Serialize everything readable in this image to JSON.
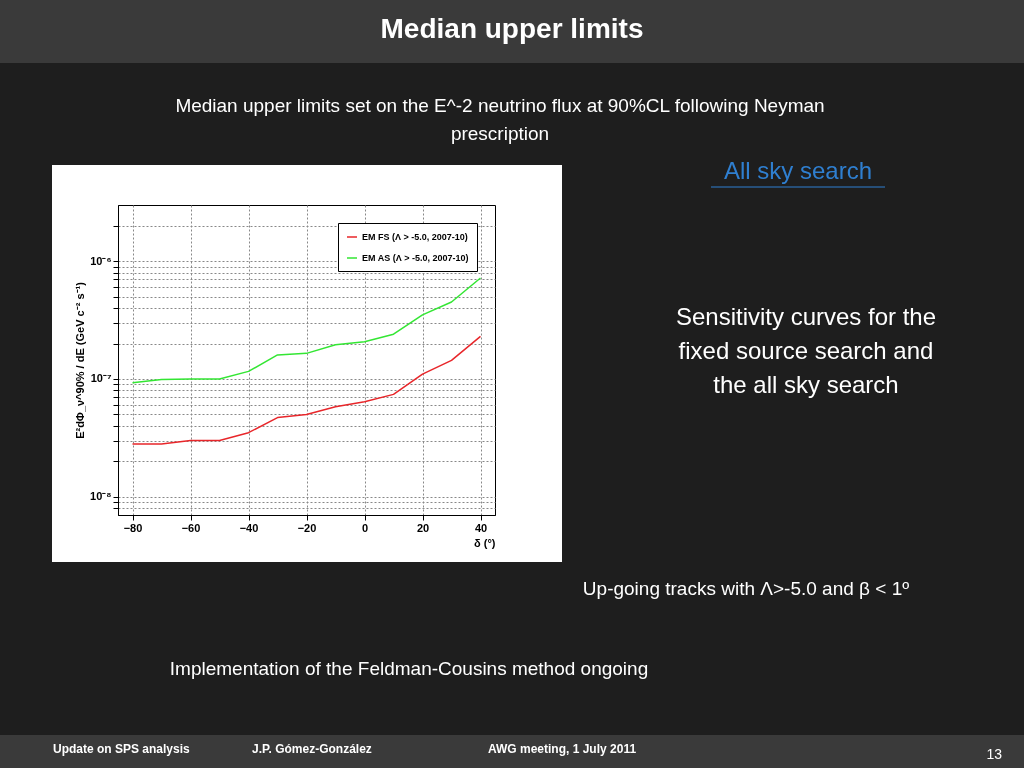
{
  "chart_data": {
    "type": "line",
    "title": "Median upper limits",
    "subtitle": "Median upper limits set on  the E^-2 neutrino flux at 90%CL following Neyman prescription",
    "xlabel": "δ (°)",
    "ylabel": "E²dΦ_ν^90% / dE (GeV c⁻² s⁻¹)",
    "x": [
      -80,
      -70,
      -60,
      -50,
      -40,
      -30,
      -20,
      -10,
      0,
      10,
      20,
      30,
      40
    ],
    "series": [
      {
        "name": "EM FS (Λ > -5.0, 2007-10)",
        "color": "#e8262a",
        "values": [
          2.8e-08,
          2.8e-08,
          3e-08,
          3e-08,
          3.5e-08,
          4.7e-08,
          5e-08,
          5.8e-08,
          6.4e-08,
          7.4e-08,
          1.1e-07,
          1.44e-07,
          2.3e-07
        ]
      },
      {
        "name": "EM AS (Λ > -5.0, 2007-10)",
        "color": "#33e633",
        "values": [
          9.3e-08,
          9.9e-08,
          1e-07,
          1e-07,
          1.16e-07,
          1.6e-07,
          1.65e-07,
          1.95e-07,
          2.07e-07,
          2.4e-07,
          3.5e-07,
          4.5e-07,
          7.2e-07
        ]
      }
    ],
    "xlim": [
      -85,
      45
    ],
    "xticks": [
      -80,
      -60,
      -40,
      -20,
      0,
      20,
      40
    ],
    "ylim": [
      7e-09,
      3e-06
    ],
    "yticks": [
      {
        "value": 8e-09,
        "label": null
      },
      {
        "value": 9e-09,
        "label": null
      },
      {
        "value": 1e-08,
        "label": "10⁻⁸"
      },
      {
        "value": 2e-08,
        "label": null
      },
      {
        "value": 3e-08,
        "label": null
      },
      {
        "value": 4e-08,
        "label": null
      },
      {
        "value": 5e-08,
        "label": null
      },
      {
        "value": 6e-08,
        "label": null
      },
      {
        "value": 7e-08,
        "label": null
      },
      {
        "value": 8e-08,
        "label": null
      },
      {
        "value": 9e-08,
        "label": null
      },
      {
        "value": 1e-07,
        "label": "10⁻⁷"
      },
      {
        "value": 2e-07,
        "label": null
      },
      {
        "value": 3e-07,
        "label": null
      },
      {
        "value": 4e-07,
        "label": null
      },
      {
        "value": 5e-07,
        "label": null
      },
      {
        "value": 6e-07,
        "label": null
      },
      {
        "value": 7e-07,
        "label": null
      },
      {
        "value": 8e-07,
        "label": null
      },
      {
        "value": 9e-07,
        "label": null
      },
      {
        "value": 1e-06,
        "label": "10⁻⁶"
      },
      {
        "value": 2e-06,
        "label": null
      }
    ],
    "log": "y",
    "grid": true,
    "legend": "top right",
    "line_style": "solid",
    "marker": "none",
    "annotations": [
      "All sky search",
      "Sensitivity curves for the fixed source search and the all sky search",
      "Up-going tracks with Λ>-5.0 and β < 1º",
      "Implementation of the Feldman-Cousins method ongoing",
      "Update on SPS analysis",
      "J.P. Gómez-González",
      "AWG meeting, 1 July 2011",
      "13"
    ]
  }
}
